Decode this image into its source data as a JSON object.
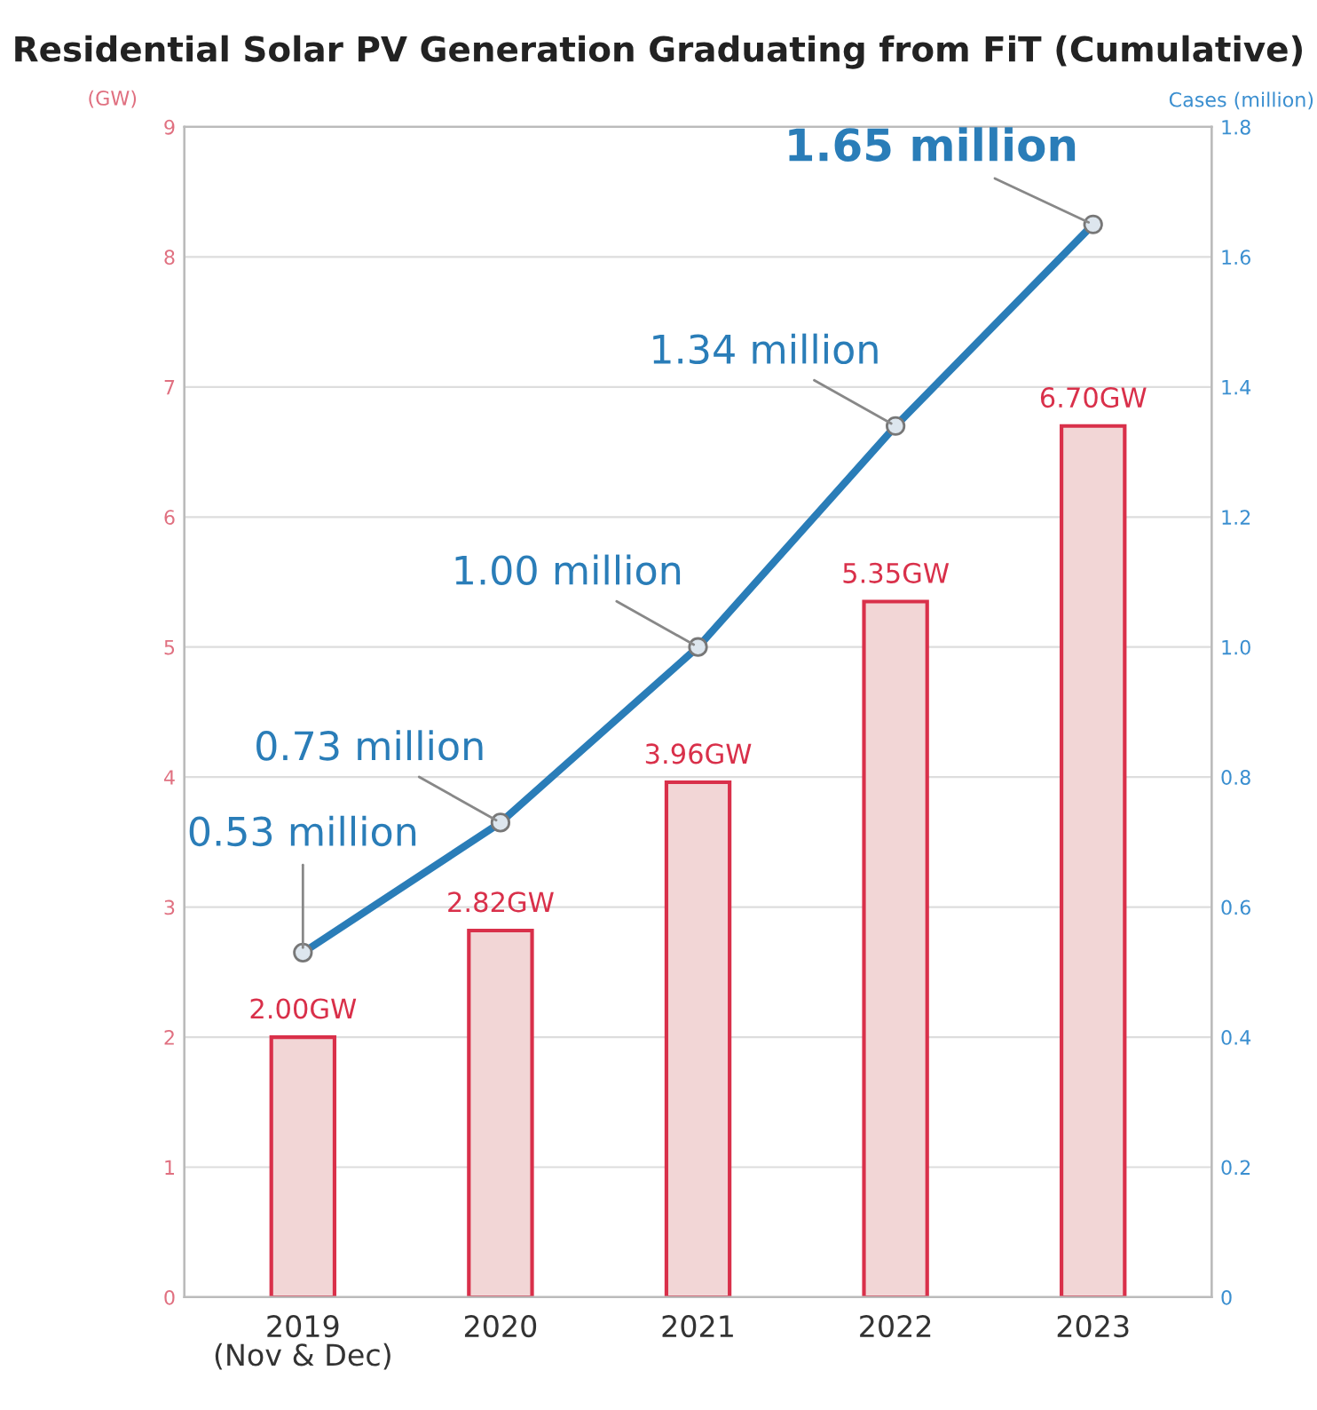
{
  "chart_data": {
    "type": "bar",
    "title": "Residential Solar PV Generation Graduating from FiT (Cumulative)",
    "ylabel": "(GW)",
    "y2label": "Cases (million)",
    "categories": [
      "2019\n(Nov & Dec)",
      "2020",
      "2021",
      "2022",
      "2023"
    ],
    "series": [
      {
        "color": "#f2d6d6",
        "values": [
          2.0,
          2.82,
          3.96,
          5.35,
          6.7
        ],
        "value_labels": [
          "2.00GW",
          "2.82GW",
          "3.96GW",
          "5.35GW",
          "6.70GW"
        ]
      },
      {
        "type": "line",
        "axis": "y2",
        "color": "#2a7db8",
        "marker": "circle",
        "values": [
          0.53,
          0.73,
          1.0,
          1.34,
          1.65
        ],
        "value_labels": [
          "0.53 million",
          "0.73 million",
          "1.00 million",
          "1.34 million",
          "1.65 million"
        ]
      }
    ],
    "ylim": [
      0,
      9
    ],
    "yticks": [
      0,
      1,
      2,
      3,
      4,
      5,
      6,
      7,
      8,
      9
    ],
    "y2lim": [
      0,
      1.8
    ],
    "y2ticks": [
      0,
      0.2,
      0.4,
      0.6,
      0.8,
      {
        "value": 1.0,
        "label": "1.0"
      },
      1.2,
      1.4,
      1.6,
      1.8
    ],
    "grid": "y",
    "legend": false
  }
}
